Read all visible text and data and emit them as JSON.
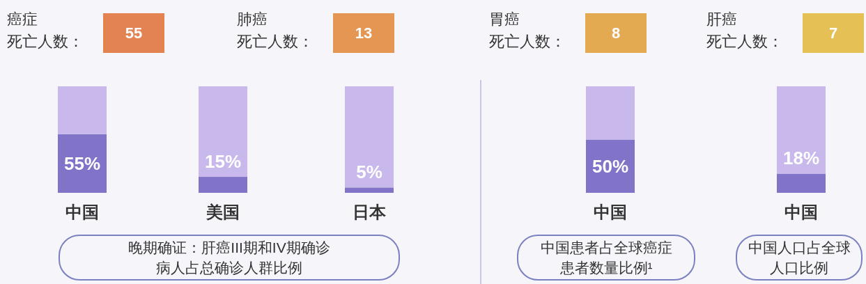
{
  "chart_data": [
    {
      "type": "other",
      "categories": [
        "癌症",
        "肺癌",
        "胃癌",
        "肝癌"
      ],
      "ylabel": "死亡人数：",
      "values": [
        55,
        13,
        8,
        7
      ],
      "colors": [
        "#e38352",
        "#e49652",
        "#e4aa52",
        "#e5c155"
      ],
      "data_labels": true
    },
    {
      "type": "bar",
      "categories": [
        "中国",
        "美国",
        "日本"
      ],
      "stacked": true,
      "series": [
        {
          "color": "#8073c8",
          "values": [
            55,
            15,
            5
          ],
          "value_labels": [
            "55%",
            "15%",
            "5%"
          ]
        },
        {
          "color": "#c8b8ec",
          "values": [
            45,
            85,
            95
          ]
        }
      ],
      "xlabel": "晚期确证：肝癌III期和IV期确诊病人占总确诊人群比例"
    },
    {
      "type": "bar",
      "categories": [
        "中国"
      ],
      "stacked": true,
      "series": [
        {
          "color": "#8073c8",
          "values": [
            50
          ],
          "value_labels": [
            "50%"
          ]
        },
        {
          "color": "#c8b8ec",
          "values": [
            50
          ]
        }
      ],
      "xlabel": "中国患者占全球癌症患者数量比例¹"
    },
    {
      "type": "bar",
      "categories": [
        "中国"
      ],
      "stacked": true,
      "series": [
        {
          "color": "#8073c8",
          "values": [
            18
          ],
          "value_labels": [
            "18%"
          ]
        },
        {
          "color": "#c8b8ec",
          "values": [
            82
          ]
        }
      ],
      "xlabel": "中国人口占全球人口比例"
    }
  ]
}
